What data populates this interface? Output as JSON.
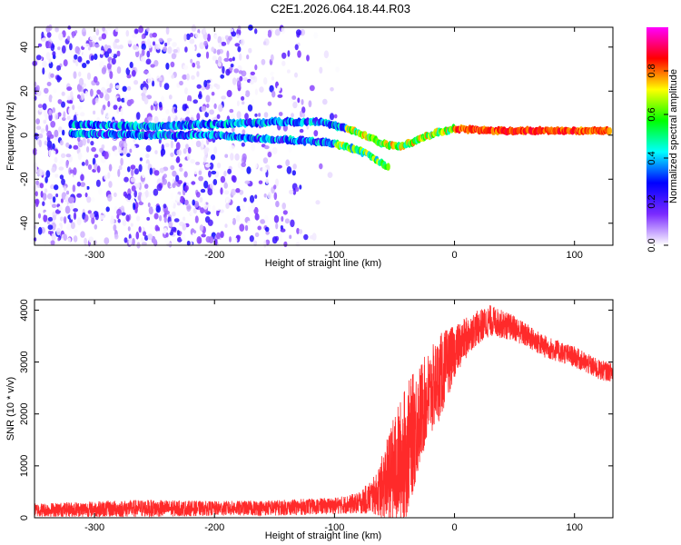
{
  "title": "C2E1.2026.064.18.44.R03",
  "chart_data": [
    {
      "type": "heatmap",
      "xlabel": "Height of straight line (km)",
      "ylabel": "Frequency (Hz)",
      "xlim": [
        -350,
        132
      ],
      "ylim": [
        -50,
        49
      ],
      "xticks": [
        -300,
        -200,
        -100,
        0,
        100
      ],
      "xtick_labels": [
        "-300",
        "-200",
        "-100",
        "0",
        "100"
      ],
      "yticks": [
        -40,
        -20,
        0,
        20,
        40
      ],
      "ytick_labels": [
        "-40",
        "-20",
        "0",
        "20",
        "40"
      ],
      "colorbar": {
        "label": "Normalized spectral amplitude",
        "range": [
          0,
          1
        ],
        "ticks": [
          0.0,
          0.2,
          0.4,
          0.6,
          0.8
        ],
        "tick_labels": [
          "0.0",
          "0.2",
          "0.4",
          "0.6",
          "0.8"
        ],
        "colors": [
          "#ffffff",
          "#7b2bff",
          "#0000ff",
          "#00ffff",
          "#00ff00",
          "#ffff00",
          "#ff0000",
          "#ff00ff"
        ]
      },
      "noise_region_x": [
        -350,
        -90
      ],
      "tracks": [
        {
          "name": "upper branch",
          "points": [
            [
              -320,
              5
            ],
            [
              -260,
              4
            ],
            [
              -200,
              5
            ],
            [
              -150,
              6
            ],
            [
              -110,
              6
            ],
            [
              -90,
              3
            ],
            [
              -75,
              0
            ],
            [
              -60,
              -4
            ],
            [
              -45,
              -5
            ],
            [
              -30,
              -2
            ],
            [
              -15,
              1
            ],
            [
              0,
              3
            ],
            [
              30,
              2
            ],
            [
              80,
              2
            ],
            [
              130,
              2
            ]
          ]
        },
        {
          "name": "lower branch",
          "points": [
            [
              -320,
              1
            ],
            [
              -260,
              0
            ],
            [
              -200,
              0
            ],
            [
              -150,
              -2
            ],
            [
              -110,
              -3
            ],
            [
              -90,
              -5
            ],
            [
              -75,
              -8
            ],
            [
              -60,
              -13
            ],
            [
              -55,
              -15
            ]
          ]
        }
      ]
    },
    {
      "type": "line",
      "xlabel": "Height of straight line (km)",
      "ylabel": "SNR (10 * v/v)",
      "xlim": [
        -350,
        132
      ],
      "ylim": [
        0,
        4200
      ],
      "xticks": [
        -300,
        -200,
        -100,
        0,
        100
      ],
      "xtick_labels": [
        "-300",
        "-200",
        "-100",
        "0",
        "100"
      ],
      "yticks": [
        0,
        1000,
        2000,
        3000,
        4000
      ],
      "ytick_labels": [
        "0",
        "1000",
        "2000",
        "3000",
        "4000"
      ],
      "color": "#ff2a2a",
      "series": [
        {
          "name": "SNR",
          "envelope": [
            {
              "x": -350,
              "base": 150,
              "amp": 130
            },
            {
              "x": -260,
              "base": 180,
              "amp": 170
            },
            {
              "x": -200,
              "base": 180,
              "amp": 140
            },
            {
              "x": -150,
              "base": 190,
              "amp": 150
            },
            {
              "x": -100,
              "base": 230,
              "amp": 160
            },
            {
              "x": -80,
              "base": 280,
              "amp": 200
            },
            {
              "x": -65,
              "base": 450,
              "amp": 400
            },
            {
              "x": -50,
              "base": 900,
              "amp": 1100
            },
            {
              "x": -40,
              "base": 1300,
              "amp": 1300
            },
            {
              "x": -25,
              "base": 2200,
              "amp": 900
            },
            {
              "x": -10,
              "base": 2800,
              "amp": 800
            },
            {
              "x": 0,
              "base": 3200,
              "amp": 500
            },
            {
              "x": 15,
              "base": 3600,
              "amp": 350
            },
            {
              "x": 30,
              "base": 3800,
              "amp": 300
            },
            {
              "x": 50,
              "base": 3650,
              "amp": 250
            },
            {
              "x": 75,
              "base": 3300,
              "amp": 220
            },
            {
              "x": 100,
              "base": 3100,
              "amp": 200
            },
            {
              "x": 120,
              "base": 2850,
              "amp": 200
            },
            {
              "x": 132,
              "base": 2800,
              "amp": 180
            }
          ]
        }
      ]
    }
  ]
}
